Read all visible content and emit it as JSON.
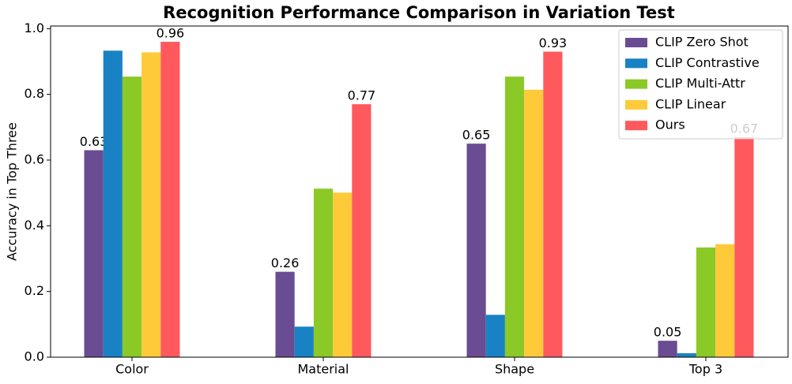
{
  "chart_data": {
    "type": "bar",
    "title": "Recognition Performance Comparison in Variation Test",
    "y_label": "Accuracy in Top Three",
    "categories": [
      "Color",
      "Material",
      "Shape",
      "Top 3"
    ],
    "series": [
      {
        "name": "CLIP Zero Shot",
        "color": "#6a4c93",
        "values": [
          0.63,
          0.26,
          0.65,
          0.05
        ],
        "labeled": true
      },
      {
        "name": "CLIP Contrastive",
        "color": "#1982c4",
        "values": [
          0.933,
          0.093,
          0.129,
          0.012
        ],
        "labeled": false
      },
      {
        "name": "CLIP Multi-Attr",
        "color": "#8ac926",
        "values": [
          0.854,
          0.513,
          0.854,
          0.334
        ],
        "labeled": false
      },
      {
        "name": "CLIP Linear",
        "color": "#ffca3a",
        "values": [
          0.928,
          0.501,
          0.814,
          0.344
        ],
        "labeled": false
      },
      {
        "name": "Ours",
        "color": "#ff595e",
        "values": [
          0.96,
          0.77,
          0.93,
          0.67
        ],
        "labeled": true
      }
    ],
    "ylim": [
      0,
      1.008
    ],
    "yticks": [
      {
        "value": 0,
        "label": "0.0"
      },
      0.2,
      0.4,
      0.6,
      0.8,
      {
        "value": 1,
        "label": "1.0"
      }
    ],
    "legend": "upper-right"
  }
}
